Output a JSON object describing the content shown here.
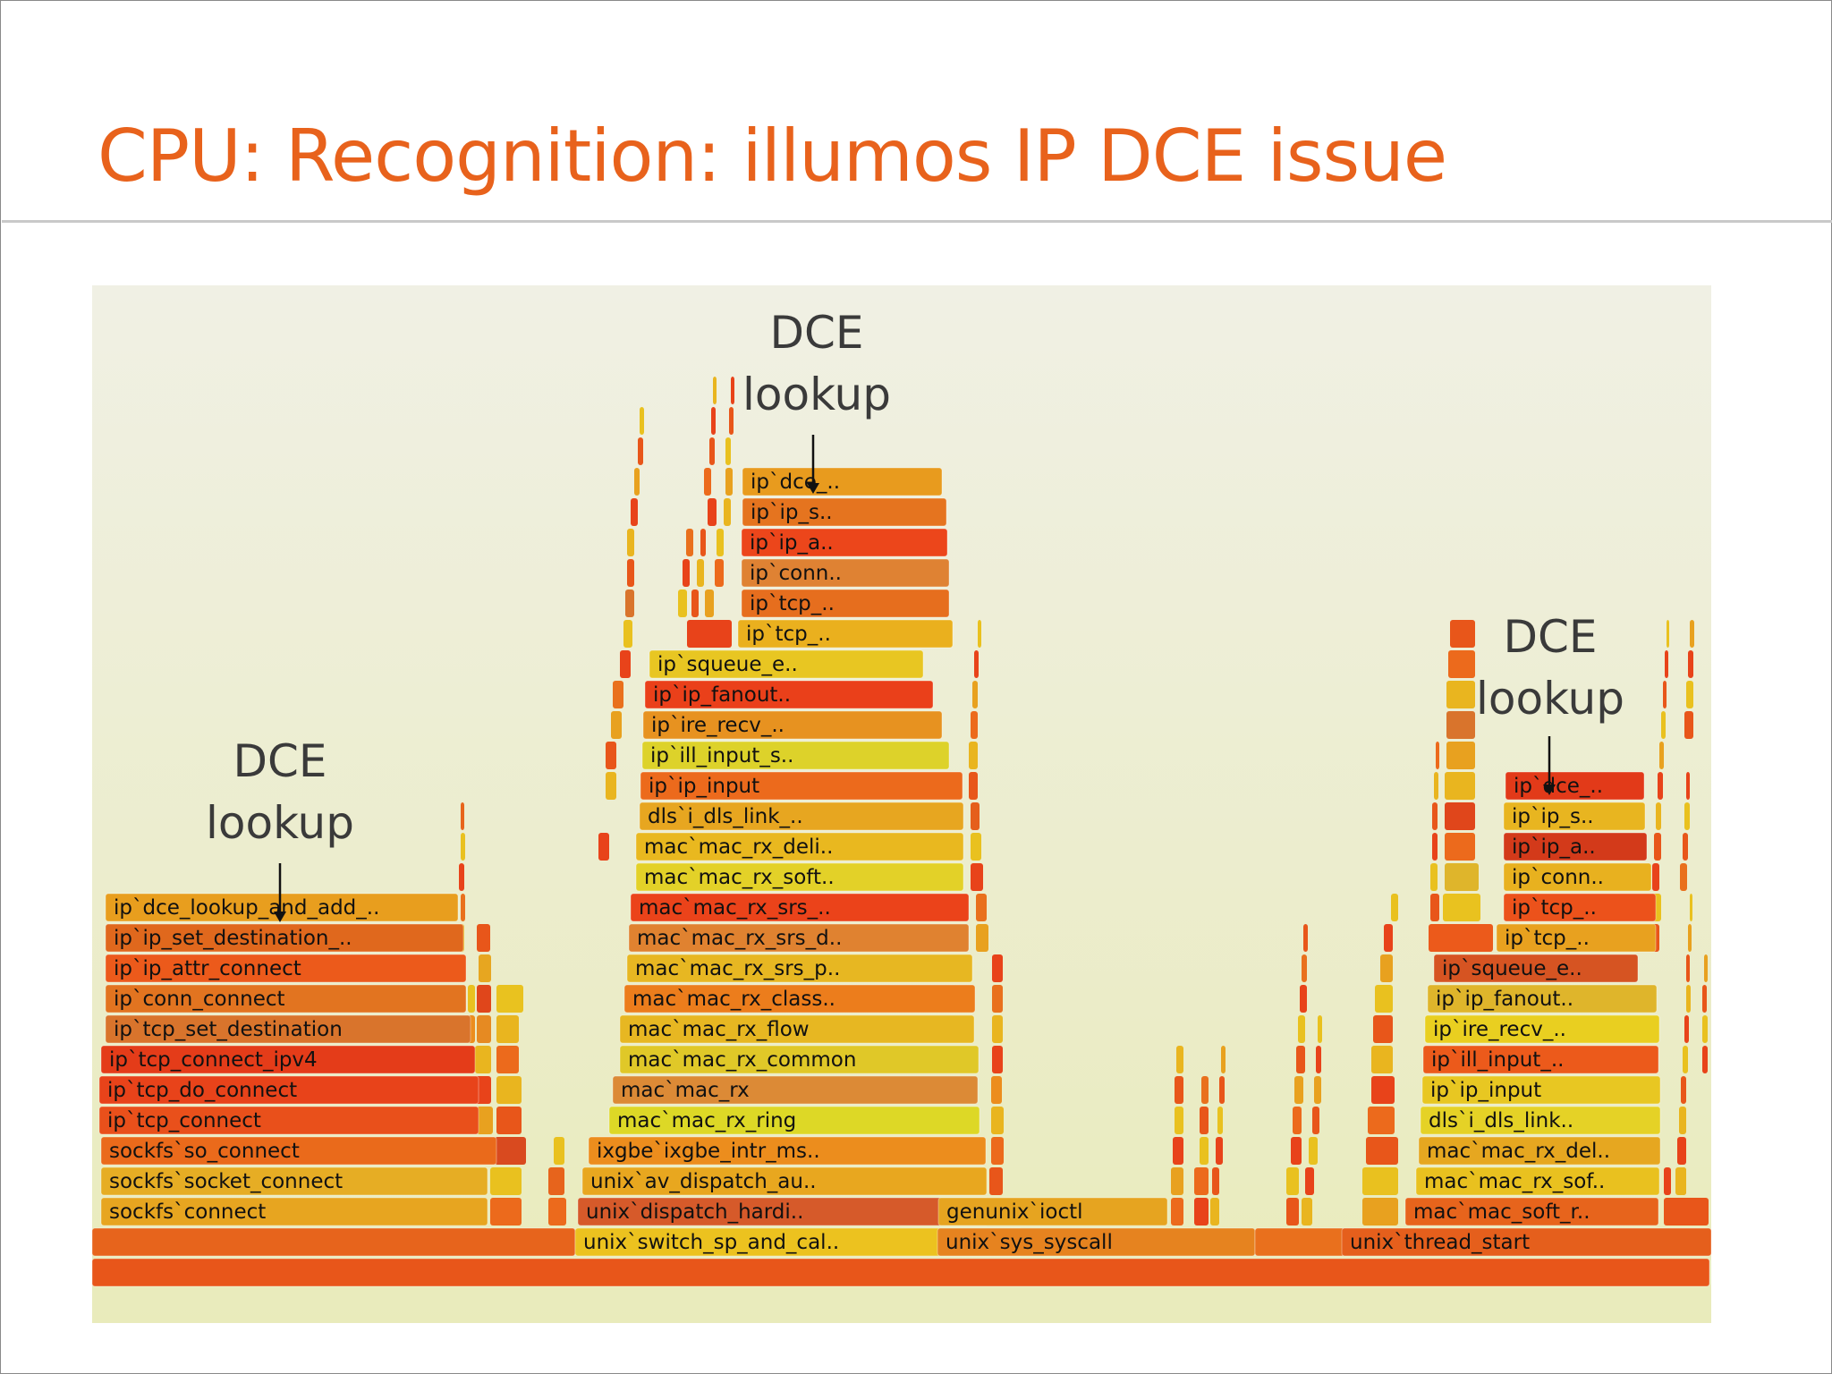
{
  "slide": {
    "title": "CPU: Recognition: illumos IP DCE issue"
  },
  "annotations": [
    {
      "line1": "DCE",
      "line2": "lookup"
    },
    {
      "line1": "DCE",
      "line2": "lookup"
    },
    {
      "line1": "DCE",
      "line2": "lookup"
    }
  ],
  "flame_frames": [
    {
      "label": "",
      "color": "#e8561a"
    },
    {
      "label": "",
      "color": "#e7641c"
    },
    {
      "label": "unix`switch_sp_and_cal..",
      "color": "#ecc21f"
    },
    {
      "label": "unix`sys_syscall",
      "color": "#e6831f"
    },
    {
      "label": "",
      "color": "#e9701d"
    },
    {
      "label": "unix`thread_start",
      "color": "#e55f1c"
    },
    {
      "label": "sockfs`connect",
      "color": "#e7a520"
    },
    {
      "label": "sockfs`socket_connect",
      "color": "#e6ad24"
    },
    {
      "label": "sockfs`so_connect",
      "color": "#ea6a1b"
    },
    {
      "label": "ip`tcp_connect",
      "color": "#e9501b"
    },
    {
      "label": "ip`tcp_do_connect",
      "color": "#e8431a"
    },
    {
      "label": "ip`tcp_connect_ipv4",
      "color": "#e43c19"
    },
    {
      "label": "ip`tcp_set_destination",
      "color": "#d9742c"
    },
    {
      "label": "ip`conn_connect",
      "color": "#e27420"
    },
    {
      "label": "ip`ip_attr_connect",
      "color": "#ec5a1b"
    },
    {
      "label": "ip`ip_set_destination_..",
      "color": "#e0681d"
    },
    {
      "label": "ip`dce_lookup_and_add_..",
      "color": "#e89e1e"
    },
    {
      "label": "unix`dispatch_hardi..",
      "color": "#d65a2a"
    },
    {
      "label": "unix`av_dispatch_au..",
      "color": "#e8a71f"
    },
    {
      "label": "ixgbe`ixgbe_intr_ms..",
      "color": "#ec8d1d"
    },
    {
      "label": "mac`mac_rx_ring",
      "color": "#ddd826"
    },
    {
      "label": "mac`mac_rx",
      "color": "#dc8a36"
    },
    {
      "label": "mac`mac_rx_common",
      "color": "#e0c828"
    },
    {
      "label": "mac`mac_rx_flow",
      "color": "#e7b722"
    },
    {
      "label": "mac`mac_rx_class..",
      "color": "#ec7d1c"
    },
    {
      "label": "mac`mac_rx_srs_p..",
      "color": "#e7b722"
    },
    {
      "label": "mac`mac_rx_srs_d..",
      "color": "#e08230"
    },
    {
      "label": "mac`mac_rx_srs_..",
      "color": "#eb431a"
    },
    {
      "label": "mac`mac_rx_soft..",
      "color": "#e3d128"
    },
    {
      "label": "mac`mac_rx_deli..",
      "color": "#e9b81f"
    },
    {
      "label": "dls`i_dls_link_..",
      "color": "#e7a620"
    },
    {
      "label": "ip`ip_input",
      "color": "#ec6a1c"
    },
    {
      "label": "ip`ill_input_s..",
      "color": "#ddd22a"
    },
    {
      "label": "ip`ire_recv_..",
      "color": "#e79220"
    },
    {
      "label": "ip`ip_fanout..",
      "color": "#ea401a"
    },
    {
      "label": "ip`squeue_e..",
      "color": "#e8c622"
    },
    {
      "label": "ip`tcp_..",
      "color": "#eab01e"
    },
    {
      "label": "ip`tcp_..",
      "color": "#e66e1e"
    },
    {
      "label": "ip`conn..",
      "color": "#df8233"
    },
    {
      "label": "ip`ip_a..",
      "color": "#ec461b"
    },
    {
      "label": "ip`ip_s..",
      "color": "#e5741f"
    },
    {
      "label": "ip`dce_..",
      "color": "#e89b1e"
    },
    {
      "label": "genunix`ioctl",
      "color": "#e6a420"
    },
    {
      "label": "mac`mac_soft_r..",
      "color": "#e7641c"
    },
    {
      "label": "mac`mac_rx_sof..",
      "color": "#e9c11f"
    },
    {
      "label": "mac`mac_rx_del..",
      "color": "#e6a720"
    },
    {
      "label": "dls`i_dls_link..",
      "color": "#e5d226"
    },
    {
      "label": "ip`ip_input",
      "color": "#e8c722"
    },
    {
      "label": "ip`ill_input_..",
      "color": "#ec5a1b"
    },
    {
      "label": "ip`ire_recv_..",
      "color": "#e9cf20"
    },
    {
      "label": "ip`ip_fanout..",
      "color": "#dfb52b"
    },
    {
      "label": "ip`squeue_e..",
      "color": "#d65422"
    },
    {
      "label": "ip`tcp_..",
      "color": "#e8a11f"
    },
    {
      "label": "ip`tcp_..",
      "color": "#ec521b"
    },
    {
      "label": "ip`conn..",
      "color": "#e8b11f"
    },
    {
      "label": "ip`ip_a..",
      "color": "#d33a1a"
    },
    {
      "label": "ip`ip_s..",
      "color": "#e8b520"
    },
    {
      "label": "ip`dce_..",
      "color": "#e23a19"
    }
  ]
}
